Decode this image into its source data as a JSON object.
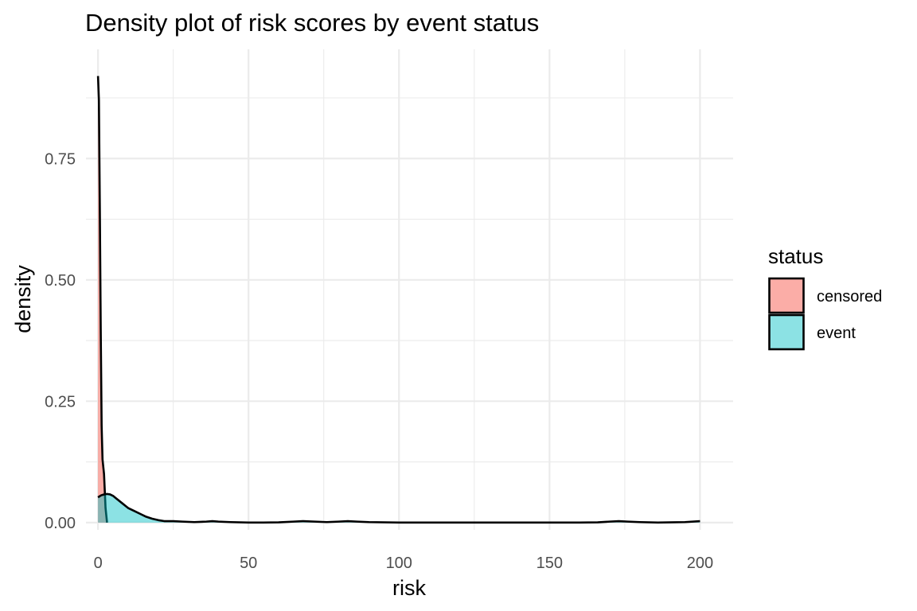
{
  "chart_data": {
    "type": "area",
    "title": "Density plot of risk scores by event status",
    "xlabel": "risk",
    "ylabel": "density",
    "xlim": [
      -4,
      211
    ],
    "ylim": [
      -0.015,
      0.975
    ],
    "x_ticks": [
      0,
      50,
      100,
      150,
      200
    ],
    "x_tick_labels": [
      "0",
      "50",
      "100",
      "150",
      "200"
    ],
    "y_ticks": [
      0,
      0.25,
      0.5,
      0.75
    ],
    "y_tick_labels": [
      "0.00",
      "0.25",
      "0.50",
      "0.75"
    ],
    "grid": true,
    "legend": {
      "title": "status",
      "position": "right"
    },
    "series": [
      {
        "name": "censored",
        "color": "#F8766D",
        "fill_alpha": 0.6,
        "x": [
          0,
          0.3,
          0.6,
          0.9,
          1.2,
          1.5,
          2.0,
          2.5,
          3.0
        ],
        "y": [
          0.92,
          0.87,
          0.65,
          0.4,
          0.2,
          0.13,
          0.1,
          0.03,
          0.0
        ]
      },
      {
        "name": "event",
        "color": "#00BFC4",
        "fill_alpha": 0.45,
        "x": [
          0,
          1,
          2,
          3,
          4,
          5,
          6,
          8,
          10,
          12,
          14,
          16,
          18,
          20,
          22,
          25,
          28,
          32,
          36,
          38,
          40,
          44,
          50,
          55,
          60,
          65,
          68,
          72,
          76,
          80,
          83,
          86,
          90,
          100,
          120,
          140,
          160,
          166,
          170,
          173,
          176,
          180,
          186,
          190,
          195,
          200
        ],
        "y": [
          0.052,
          0.056,
          0.058,
          0.059,
          0.058,
          0.055,
          0.05,
          0.04,
          0.03,
          0.024,
          0.018,
          0.012,
          0.008,
          0.005,
          0.003,
          0.003,
          0.002,
          0.001,
          0.002,
          0.003,
          0.002,
          0.001,
          0.0,
          0.0,
          0.0005,
          0.002,
          0.003,
          0.002,
          0.001,
          0.002,
          0.003,
          0.002,
          0.001,
          0.0,
          0.0,
          0.0,
          0.0,
          0.0005,
          0.002,
          0.003,
          0.002,
          0.001,
          0.0,
          0.0005,
          0.001,
          0.003
        ]
      }
    ]
  }
}
